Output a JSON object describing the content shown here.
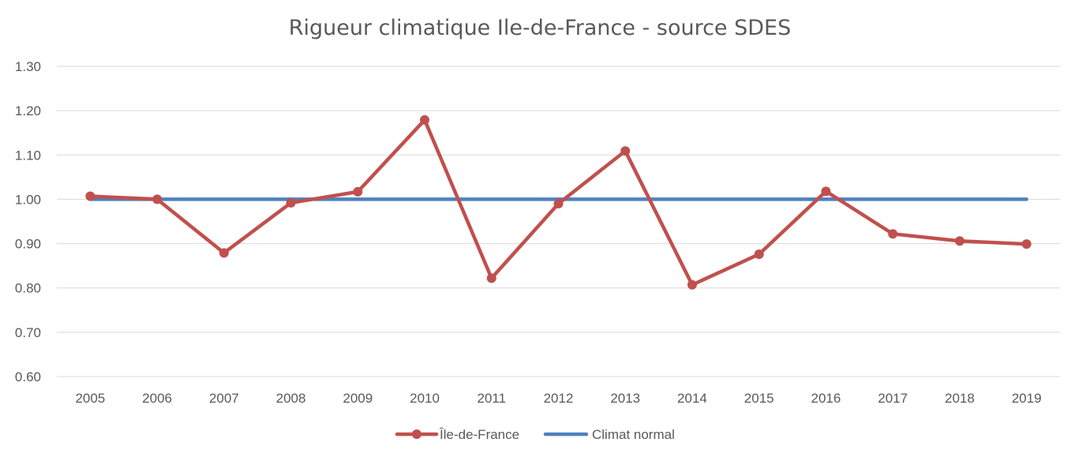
{
  "chart_data": {
    "type": "line",
    "title": "Rigueur climatique Ile-de-France - source SDES",
    "xlabel": "",
    "ylabel": "",
    "categories": [
      "2005",
      "2006",
      "2007",
      "2008",
      "2009",
      "2010",
      "2011",
      "2012",
      "2013",
      "2014",
      "2015",
      "2016",
      "2017",
      "2018",
      "2019"
    ],
    "ylim": [
      0.6,
      1.3
    ],
    "yticks": [
      "0.60",
      "0.70",
      "0.80",
      "0.90",
      "1.00",
      "1.10",
      "1.20",
      "1.30"
    ],
    "grid": true,
    "legend_position": "bottom",
    "series": [
      {
        "name": "Île-de-France",
        "color": "#c0504d",
        "marker": "circle",
        "values": [
          1.007,
          1.0,
          0.879,
          0.992,
          1.017,
          1.179,
          0.822,
          0.99,
          1.109,
          0.807,
          0.876,
          1.018,
          0.922,
          0.906,
          0.899
        ]
      },
      {
        "name": "Climat normal",
        "color": "#4f81bd",
        "marker": "none",
        "values": [
          1.0,
          1.0,
          1.0,
          1.0,
          1.0,
          1.0,
          1.0,
          1.0,
          1.0,
          1.0,
          1.0,
          1.0,
          1.0,
          1.0,
          1.0
        ]
      }
    ]
  }
}
